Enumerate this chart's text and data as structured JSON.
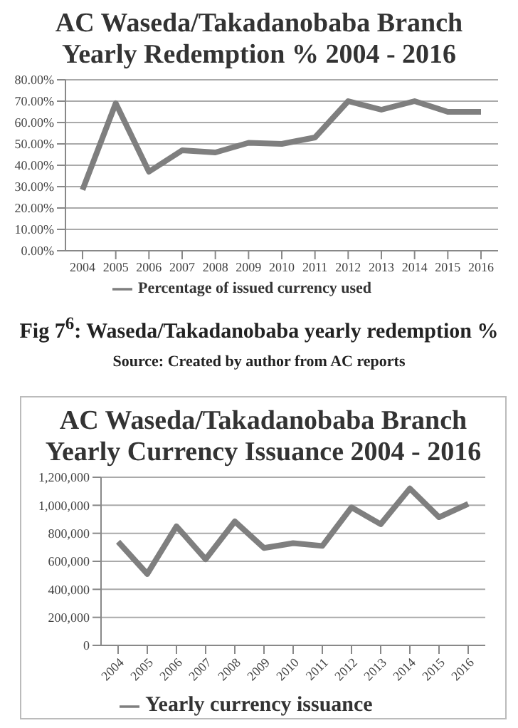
{
  "chart_data": [
    {
      "type": "line",
      "title": "AC Waseda/Takadanobaba Branch\nYearly Redemption % 2004 - 2016",
      "categories": [
        "2004",
        "2005",
        "2006",
        "2007",
        "2008",
        "2009",
        "2010",
        "2011",
        "2012",
        "2013",
        "2014",
        "2015",
        "2016"
      ],
      "series": [
        {
          "name": "Percentage of issued currency used",
          "color": "#7f7f7f",
          "values": [
            28.5,
            69,
            37,
            47,
            46,
            50.5,
            50,
            53,
            70,
            66,
            70,
            65,
            65
          ]
        }
      ],
      "ylim": [
        0,
        80
      ],
      "yticks": [
        {
          "value": 0,
          "label": "0.00%"
        },
        {
          "value": 10,
          "label": "10.00%"
        },
        {
          "value": 20,
          "label": "20.00%"
        },
        {
          "value": 30,
          "label": "30.00%"
        },
        {
          "value": 40,
          "label": "40.00%"
        },
        {
          "value": 50,
          "label": "50.00%"
        },
        {
          "value": 60,
          "label": "60.00%"
        },
        {
          "value": 70,
          "label": "70.00%"
        },
        {
          "value": 80,
          "label": "80.00%"
        }
      ],
      "grid": "y",
      "legend": "bottom",
      "marker": "none",
      "line_style": "solid",
      "annotations": [
        "Fig 7$^{6}$: Waseda/Takadanobaba yearly redemption %",
        "Source: Created by author from AC reports"
      ]
    },
    {
      "type": "line",
      "title": "AC Waseda/Takadanobaba Branch\nYearly Currency Issuance 2004 - 2016",
      "categories": [
        "2004",
        "2005",
        "2006",
        "2007",
        "2008",
        "2009",
        "2010",
        "2011",
        "2012",
        "2013",
        "2014",
        "2015",
        "2016"
      ],
      "series": [
        {
          "name": "Yearly currency issuance",
          "color": "#7f7f7f",
          "values": [
            740000,
            510000,
            850000,
            615000,
            885000,
            695000,
            730000,
            710000,
            985000,
            865000,
            1120000,
            915000,
            1010000
          ]
        }
      ],
      "ylim": [
        0,
        1200000
      ],
      "yticks": [
        {
          "value": 0,
          "label": "0"
        },
        {
          "value": 200000,
          "label": "200,000"
        },
        {
          "value": 400000,
          "label": "400,000"
        },
        {
          "value": 600000,
          "label": "600,000"
        },
        {
          "value": 800000,
          "label": "800,000"
        },
        {
          "value": 1000000,
          "label": "1,000,000"
        },
        {
          "value": 1200000,
          "label": "1,200,000"
        }
      ],
      "grid": "y",
      "legend": "bottom",
      "marker": "none",
      "line_style": "solid"
    }
  ]
}
